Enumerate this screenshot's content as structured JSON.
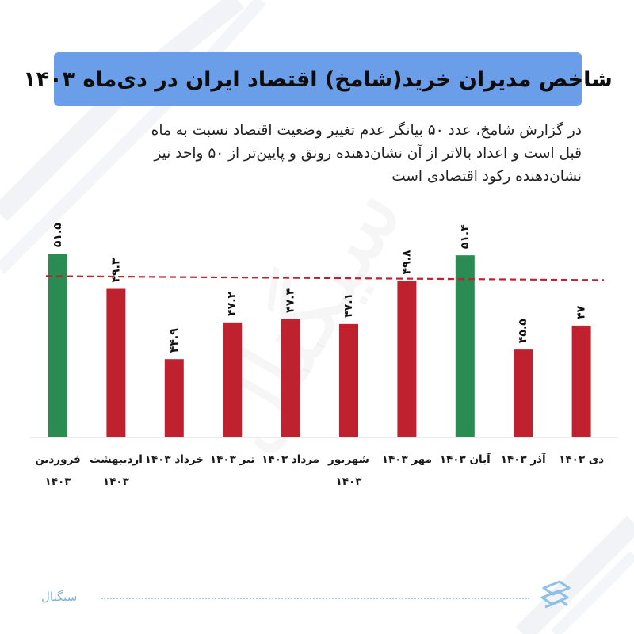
{
  "title": "شاخص مدیران خرید(شامخ) اقتصاد ایران در دی‌ماه ۱۴۰۳",
  "description_lines": [
    "در گزارش شامخ، عدد ۵۰ بیانگر عدم تغییر وضعیت اقتصاد نسبت به ماه",
    "قبل است و اعداد بالاتر از آن نشان‌دهنده رونق و پایین‌تر از ۵۰ واحد نیز",
    "نشان‌دهنده رکود اقتصادی است"
  ],
  "brand": {
    "name": "سیگنال",
    "watermark": "سیگنال"
  },
  "colors": {
    "title_bg": "#6a9ee8",
    "above_50": "#2a8c52",
    "below_50": "#c0212f",
    "reference_line": "#c0212f",
    "footer": "#7fb0d8"
  },
  "chart_data": {
    "type": "bar",
    "categories": [
      [
        "فروردین",
        "۱۴۰۳"
      ],
      [
        "اردیبهشت",
        "۱۴۰۳"
      ],
      [
        "خرداد ۱۴۰۳"
      ],
      [
        "تیر ۱۴۰۳"
      ],
      [
        "مرداد ۱۴۰۳"
      ],
      [
        "شهریور",
        "۱۴۰۳"
      ],
      [
        "مهر ۱۴۰۳"
      ],
      [
        "آبان ۱۴۰۳"
      ],
      [
        "آذر ۱۴۰۳"
      ],
      [
        "دی ۱۴۰۳"
      ]
    ],
    "values": [
      51.5,
      49.3,
      44.9,
      47.2,
      47.4,
      47.1,
      49.8,
      51.4,
      45.5,
      47
    ],
    "value_labels": [
      "۵۱.۵",
      "۴۹.۳",
      "۴۴.۹",
      "۴۷.۲",
      "۴۷.۴",
      "۴۷.۱",
      "۴۹.۸",
      "۵۱.۴",
      "۴۵.۵",
      "۴۷"
    ],
    "reference_value": 50,
    "threshold_coloring": {
      "above": "above_50",
      "below": "below_50"
    },
    "ylim": [
      40,
      52.5
    ],
    "grid": false,
    "legend": "none",
    "xlabel": "",
    "ylabel": ""
  }
}
